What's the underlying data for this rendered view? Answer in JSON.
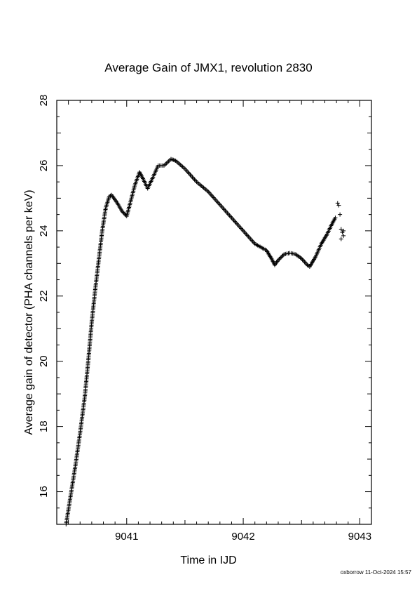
{
  "chart_data": {
    "type": "scatter",
    "title": "Average Gain of JMX1, revolution 2830",
    "xlabel": "Time in IJD",
    "ylabel": "Average gain of detector (PHA channels per keV)",
    "xlim": [
      9040.4,
      9043.1
    ],
    "ylim": [
      15,
      28
    ],
    "xticks": [
      9041,
      9042,
      9043
    ],
    "yticks": [
      16,
      18,
      20,
      22,
      24,
      26,
      28
    ],
    "marker": "+",
    "grid": false,
    "series": [
      {
        "color": "#000000",
        "curve": [
          [
            9040.48,
            15.0
          ],
          [
            9040.52,
            15.9
          ],
          [
            9040.56,
            16.8
          ],
          [
            9040.6,
            17.8
          ],
          [
            9040.64,
            18.9
          ],
          [
            9040.67,
            20.0
          ],
          [
            9040.7,
            21.2
          ],
          [
            9040.73,
            22.2
          ],
          [
            9040.76,
            23.1
          ],
          [
            9040.79,
            24.0
          ],
          [
            9040.82,
            24.7
          ],
          [
            9040.85,
            25.05
          ],
          [
            9040.87,
            25.1
          ],
          [
            9040.92,
            24.85
          ],
          [
            9040.96,
            24.6
          ],
          [
            9041.0,
            24.45
          ],
          [
            9041.03,
            24.85
          ],
          [
            9041.07,
            25.4
          ],
          [
            9041.11,
            25.8
          ],
          [
            9041.14,
            25.6
          ],
          [
            9041.18,
            25.3
          ],
          [
            9041.22,
            25.6
          ],
          [
            9041.27,
            26.0
          ],
          [
            9041.32,
            26.0
          ],
          [
            9041.38,
            26.2
          ],
          [
            9041.42,
            26.15
          ],
          [
            9041.5,
            25.9
          ],
          [
            9041.6,
            25.5
          ],
          [
            9041.7,
            25.2
          ],
          [
            9041.8,
            24.8
          ],
          [
            9041.9,
            24.4
          ],
          [
            9042.0,
            24.0
          ],
          [
            9042.1,
            23.6
          ],
          [
            9042.2,
            23.4
          ],
          [
            9042.25,
            23.1
          ],
          [
            9042.27,
            22.95
          ],
          [
            9042.3,
            23.1
          ],
          [
            9042.35,
            23.28
          ],
          [
            9042.4,
            23.32
          ],
          [
            9042.45,
            23.28
          ],
          [
            9042.5,
            23.15
          ],
          [
            9042.55,
            22.95
          ],
          [
            9042.57,
            22.9
          ],
          [
            9042.62,
            23.2
          ],
          [
            9042.67,
            23.6
          ],
          [
            9042.72,
            23.9
          ],
          [
            9042.76,
            24.2
          ],
          [
            9042.79,
            24.4
          ]
        ],
        "points": [
          [
            9042.81,
            24.85
          ],
          [
            9042.82,
            24.78
          ],
          [
            9042.83,
            24.5
          ],
          [
            9042.84,
            24.05
          ],
          [
            9042.84,
            23.75
          ],
          [
            9042.85,
            23.95
          ],
          [
            9042.86,
            24.0
          ],
          [
            9042.86,
            23.85
          ]
        ]
      }
    ]
  },
  "footer": "oxborrow 11-Oct-2024 15:57"
}
